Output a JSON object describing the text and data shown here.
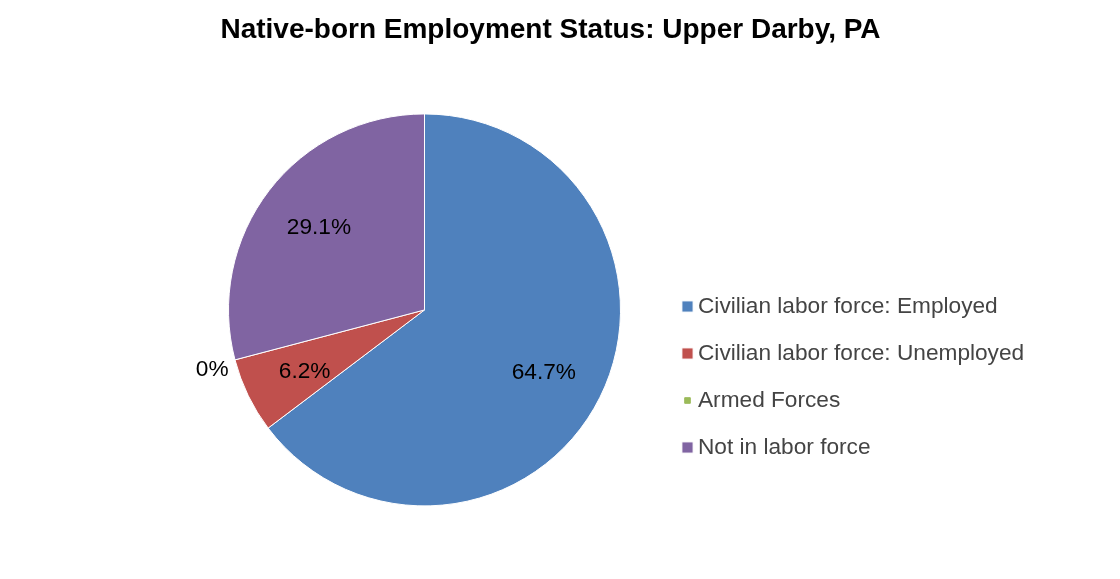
{
  "chart_data": {
    "type": "pie",
    "title": "Native-born Employment Status: Upper Darby, PA",
    "categories": [
      "Civilian labor force: Employed",
      "Civilian labor force: Unemployed",
      "Armed Forces",
      "Not in labor force"
    ],
    "values": [
      64.7,
      6.2,
      0,
      29.1
    ],
    "colors": [
      "#4f81bd",
      "#c0504d",
      "#9bbb59",
      "#8064a2"
    ],
    "value_labels": [
      "64.7%",
      "6.2%",
      "0%",
      "29.1%"
    ],
    "legend": "right"
  }
}
